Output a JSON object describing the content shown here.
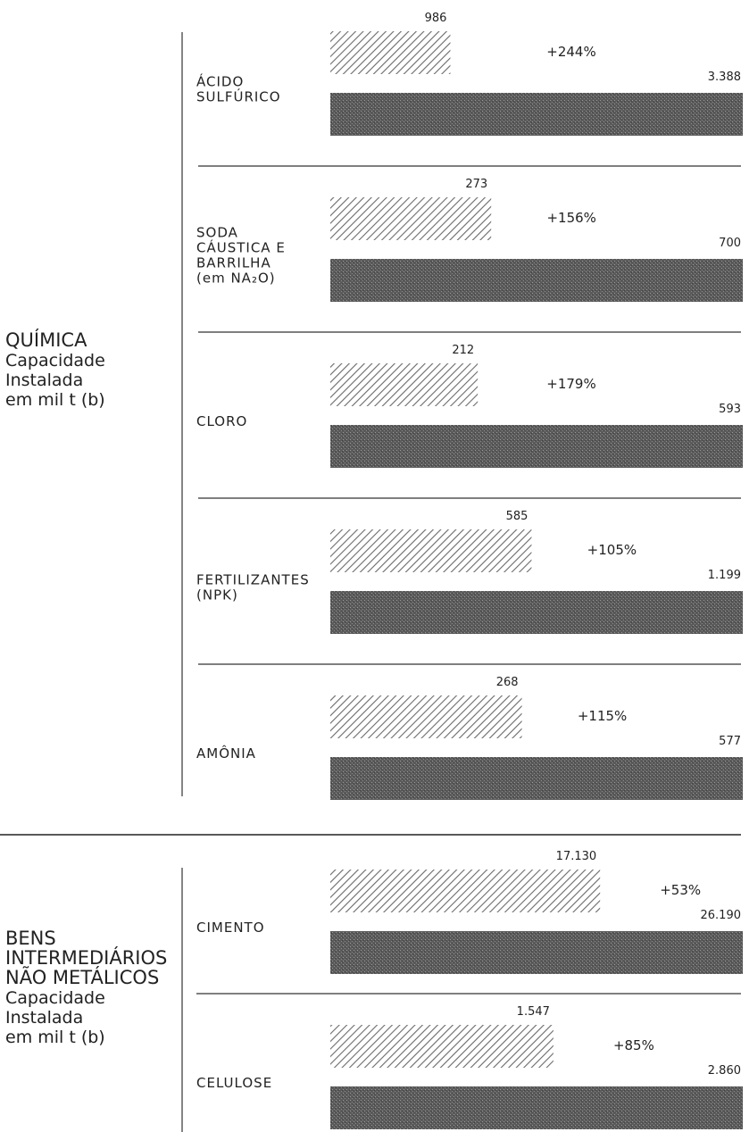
{
  "chart_data": {
    "type": "bar",
    "groups": [
      {
        "label_lines": [
          "QUÍMICA",
          "Capacidade",
          "Instalada",
          "em mil t (b)"
        ],
        "items": [
          {
            "label_lines": [
              "ÁCIDO",
              "SULFÚRICO"
            ],
            "before": 986,
            "after": 3388,
            "before_label": "986",
            "after_label": "3.388",
            "change": "+244%"
          },
          {
            "label_lines": [
              "SODA",
              "CÁUSTICA E",
              "BARRILHA",
              "(em NA₂O)"
            ],
            "before": 273,
            "after": 700,
            "before_label": "273",
            "after_label": "700",
            "change": "+156%"
          },
          {
            "label_lines": [
              "CLORO"
            ],
            "before": 212,
            "after": 593,
            "before_label": "212",
            "after_label": "593",
            "change": "+179%"
          },
          {
            "label_lines": [
              "FERTILIZANTES",
              "(NPK)"
            ],
            "before": 585,
            "after": 1199,
            "before_label": "585",
            "after_label": "1.199",
            "change": "+105%"
          },
          {
            "label_lines": [
              "AMÔNIA"
            ],
            "before": 268,
            "after": 577,
            "before_label": "268",
            "after_label": "577",
            "change": "+115%"
          }
        ]
      },
      {
        "label_lines": [
          "BENS",
          "INTERMEDIÁRIOS",
          "NÃO METÁLICOS",
          "Capacidade",
          "Instalada",
          "em mil t (b)"
        ],
        "items": [
          {
            "label_lines": [
              "CIMENTO"
            ],
            "before": 17130,
            "after": 26190,
            "before_label": "17.130",
            "after_label": "26.190",
            "change": "+53%"
          },
          {
            "label_lines": [
              "CELULOSE"
            ],
            "before": 1547,
            "after": 2860,
            "before_label": "1.547",
            "after_label": "2.860",
            "change": "+85%"
          }
        ]
      }
    ],
    "colors": {
      "before": "#888888",
      "after": "#555555"
    }
  }
}
